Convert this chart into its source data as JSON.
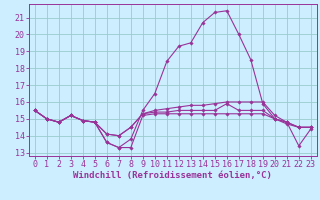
{
  "bg_color": "#cceeff",
  "line_color": "#993399",
  "grid_color": "#99cccc",
  "xlabel": "Windchill (Refroidissement éolien,°C)",
  "xlabel_color": "#993399",
  "xlabel_fontsize": 6.5,
  "tick_color": "#993399",
  "tick_fontsize": 6.0,
  "ylim": [
    12.8,
    21.8
  ],
  "xlim": [
    -0.5,
    23.5
  ],
  "yticks": [
    13,
    14,
    15,
    16,
    17,
    18,
    19,
    20,
    21
  ],
  "xticks": [
    0,
    1,
    2,
    3,
    4,
    5,
    6,
    7,
    8,
    9,
    10,
    11,
    12,
    13,
    14,
    15,
    16,
    17,
    18,
    19,
    20,
    21,
    22,
    23
  ],
  "series": [
    {
      "x": [
        0,
        1,
        2,
        3,
        4,
        5,
        6,
        7,
        8,
        9,
        10,
        11,
        12,
        13,
        14,
        15,
        16,
        17,
        18,
        19,
        20,
        21,
        22,
        23
      ],
      "y": [
        15.5,
        15.0,
        14.8,
        15.2,
        14.9,
        14.8,
        13.6,
        13.3,
        13.3,
        15.2,
        15.3,
        15.3,
        15.3,
        15.3,
        15.3,
        15.3,
        15.3,
        15.3,
        15.3,
        15.3,
        15.0,
        14.7,
        14.5,
        14.5
      ]
    },
    {
      "x": [
        0,
        1,
        2,
        3,
        4,
        5,
        6,
        7,
        8,
        9,
        10,
        11,
        12,
        13,
        14,
        15,
        16,
        17,
        18,
        19,
        20,
        21,
        22,
        23
      ],
      "y": [
        15.5,
        15.0,
        14.8,
        15.2,
        14.9,
        14.8,
        14.1,
        14.0,
        14.5,
        15.3,
        15.4,
        15.4,
        15.5,
        15.5,
        15.5,
        15.5,
        15.9,
        15.5,
        15.5,
        15.5,
        15.0,
        14.8,
        14.5,
        14.5
      ]
    },
    {
      "x": [
        0,
        1,
        2,
        3,
        4,
        5,
        6,
        7,
        8,
        9,
        10,
        11,
        12,
        13,
        14,
        15,
        16,
        17,
        18,
        19,
        20,
        21,
        22,
        23
      ],
      "y": [
        15.5,
        15.0,
        14.8,
        15.2,
        14.9,
        14.8,
        13.6,
        13.3,
        13.8,
        15.5,
        16.5,
        18.4,
        19.3,
        19.5,
        20.7,
        21.3,
        21.4,
        20.0,
        18.5,
        15.9,
        15.0,
        14.8,
        13.4,
        14.4
      ]
    },
    {
      "x": [
        0,
        1,
        2,
        3,
        4,
        5,
        6,
        7,
        8,
        9,
        10,
        11,
        12,
        13,
        14,
        15,
        16,
        17,
        18,
        19,
        20,
        21,
        22,
        23
      ],
      "y": [
        15.5,
        15.0,
        14.8,
        15.2,
        14.9,
        14.8,
        14.1,
        14.0,
        14.5,
        15.3,
        15.5,
        15.6,
        15.7,
        15.8,
        15.8,
        15.9,
        16.0,
        16.0,
        16.0,
        16.0,
        15.2,
        14.8,
        14.5,
        14.5
      ]
    }
  ]
}
